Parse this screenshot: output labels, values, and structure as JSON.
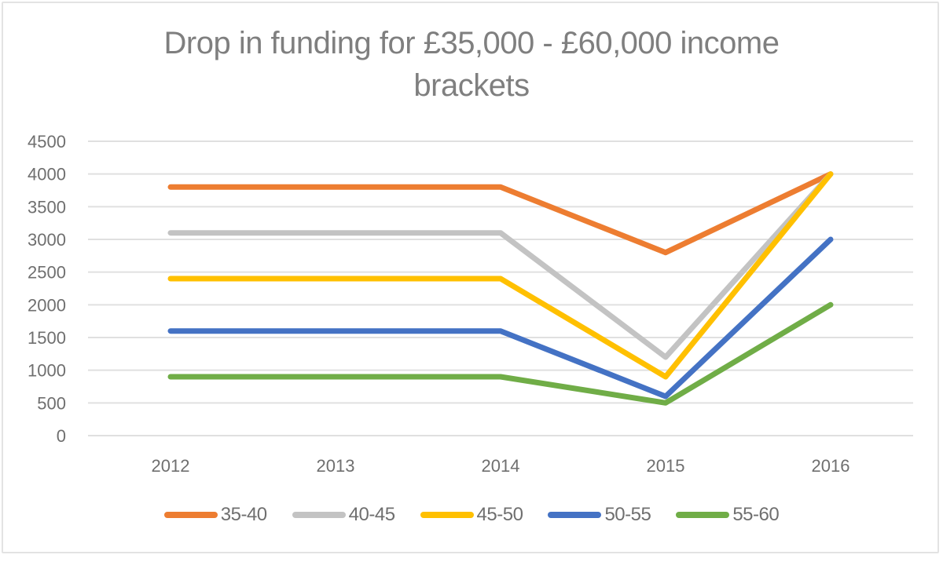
{
  "chart_data": {
    "type": "line",
    "title": "Drop in funding for £35,000 - £60,000 income brackets",
    "title_lines": [
      "Drop in funding for £35,000 - £60,000 income",
      "brackets"
    ],
    "xlabel": "",
    "ylabel": "",
    "categories": [
      "2012",
      "2013",
      "2014",
      "2015",
      "2016"
    ],
    "ylim": [
      0,
      4500
    ],
    "yticks": [
      0,
      500,
      1000,
      1500,
      2000,
      2500,
      3000,
      3500,
      4000,
      4500
    ],
    "grid": true,
    "legend_position": "bottom",
    "series": [
      {
        "name": "35-40",
        "color": "#ED7D31",
        "values": [
          3800,
          3800,
          3800,
          2800,
          4000
        ]
      },
      {
        "name": "40-45",
        "color": "#C3C3C3",
        "values": [
          3100,
          3100,
          3100,
          1200,
          4000
        ]
      },
      {
        "name": "45-50",
        "color": "#FFC000",
        "values": [
          2400,
          2400,
          2400,
          900,
          4000
        ]
      },
      {
        "name": "50-55",
        "color": "#4472C4",
        "values": [
          1600,
          1600,
          1600,
          600,
          3000
        ]
      },
      {
        "name": "55-60",
        "color": "#70AD47",
        "values": [
          900,
          900,
          900,
          500,
          2000
        ]
      }
    ]
  },
  "colors": {
    "text": "#7f7f7f",
    "gridline": "#e0e0e0",
    "border": "#e3e3e3"
  }
}
